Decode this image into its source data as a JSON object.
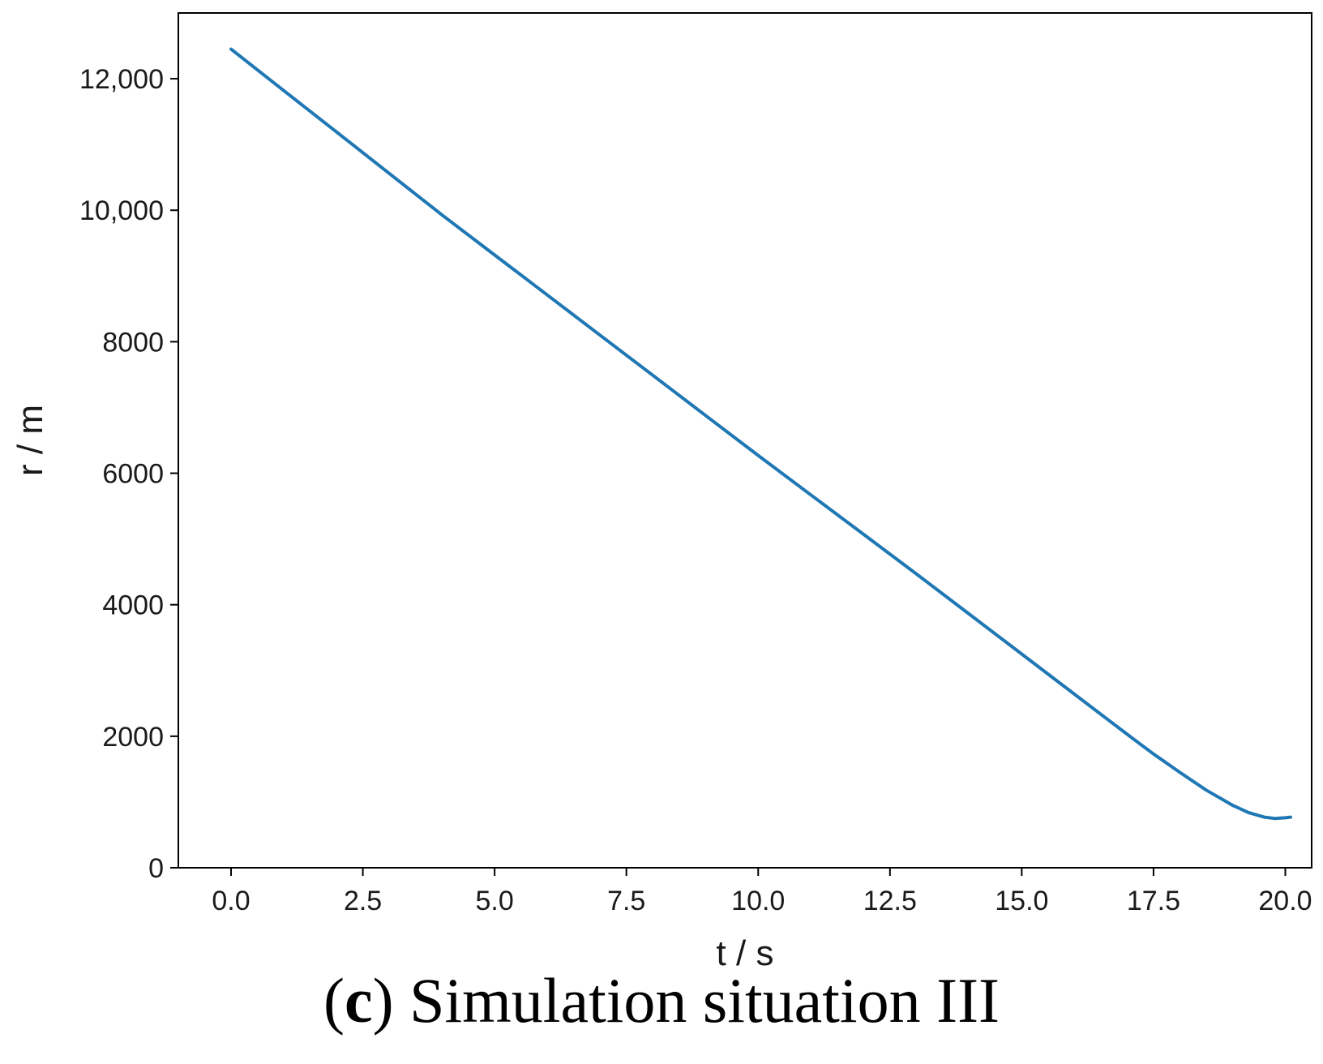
{
  "chart_data": {
    "type": "line",
    "title": "",
    "xlabel": "t / s",
    "ylabel": "r / m",
    "xlim": [
      -1.0,
      20.5
    ],
    "ylim": [
      0,
      13000
    ],
    "xticks": [
      "0.0",
      "2.5",
      "5.0",
      "7.5",
      "10.0",
      "12.5",
      "15.0",
      "17.5",
      "20.0"
    ],
    "xtick_values": [
      0,
      2.5,
      5,
      7.5,
      10,
      12.5,
      15,
      17.5,
      20
    ],
    "yticks": [
      "0",
      "2000",
      "4000",
      "6000",
      "8000",
      "10,000",
      "12,000"
    ],
    "ytick_values": [
      0,
      2000,
      4000,
      6000,
      8000,
      10000,
      12000
    ],
    "grid": false,
    "series": [
      {
        "color": "#1f77b4",
        "x": [
          0,
          1,
          2,
          3,
          4,
          5,
          6,
          7,
          8,
          9,
          10,
          11,
          12,
          13,
          14,
          15,
          16,
          17,
          17.5,
          18,
          18.5,
          19,
          19.3,
          19.6,
          19.8,
          20,
          20.1
        ],
        "y": [
          12450,
          11820,
          11190,
          10560,
          9930,
          9320,
          8710,
          8100,
          7490,
          6880,
          6270,
          5670,
          5070,
          4470,
          3860,
          3250,
          2640,
          2030,
          1730,
          1450,
          1180,
          950,
          840,
          770,
          750,
          760,
          770
        ]
      }
    ]
  },
  "caption": {
    "open": "(",
    "letter": "c",
    "close": ")",
    "text": " Simulation situation III"
  }
}
